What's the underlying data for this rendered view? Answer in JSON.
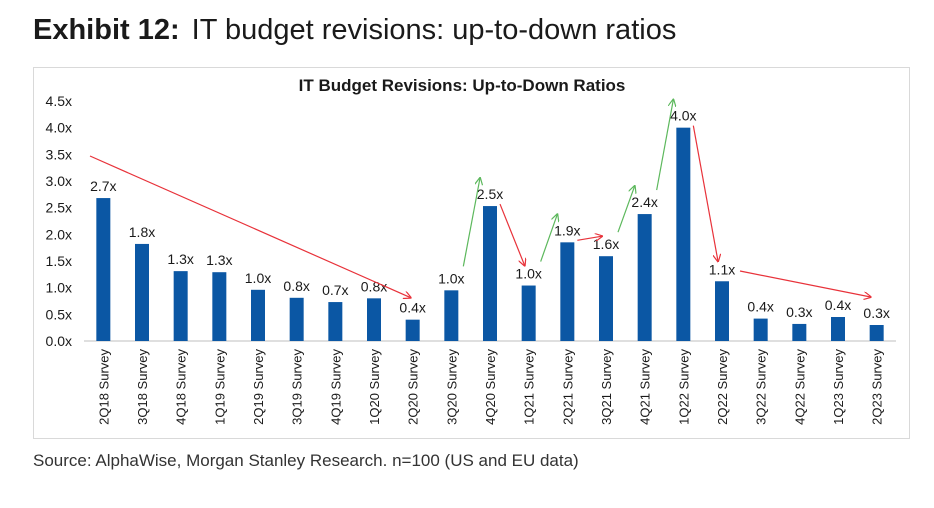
{
  "exhibit": {
    "number": "Exhibit 12:",
    "title": "IT budget revisions: up-to-down ratios"
  },
  "source": "Source: AlphaWise, Morgan Stanley Research. n=100 (US and EU data)",
  "colors": {
    "bar": "#0b57a4",
    "up_arrow": "#5cb85c",
    "down_arrow": "#e8323a",
    "text": "#1a1a1a"
  },
  "chart_data": {
    "type": "bar",
    "title": "IT Budget Revisions: Up-to-Down Ratios",
    "xlabel": "",
    "ylabel": "",
    "ylim": [
      0,
      4.5
    ],
    "yticks": [
      0,
      0.5,
      1.0,
      1.5,
      2.0,
      2.5,
      3.0,
      3.5,
      4.0,
      4.5
    ],
    "ytick_labels": [
      "0.0x",
      "0.5x",
      "1.0x",
      "1.5x",
      "2.0x",
      "2.5x",
      "3.0x",
      "3.5x",
      "4.0x",
      "4.5x"
    ],
    "categories": [
      "2Q18 Survey",
      "3Q18 Survey",
      "4Q18 Survey",
      "1Q19 Survey",
      "2Q19 Survey",
      "3Q19 Survey",
      "4Q19 Survey",
      "1Q20 Survey",
      "2Q20 Survey",
      "3Q20 Survey",
      "4Q20 Survey",
      "1Q21 Survey",
      "2Q21 Survey",
      "3Q21 Survey",
      "4Q21 Survey",
      "1Q22 Survey",
      "2Q22 Survey",
      "3Q22 Survey",
      "4Q22 Survey",
      "1Q23 Survey",
      "2Q23 Survey"
    ],
    "values": [
      2.68,
      1.82,
      1.31,
      1.29,
      0.96,
      0.81,
      0.73,
      0.8,
      0.4,
      0.95,
      2.53,
      1.04,
      1.85,
      1.59,
      2.38,
      4.0,
      1.12,
      0.42,
      0.32,
      0.45,
      0.3
    ],
    "data_labels": [
      "2.7x",
      "1.8x",
      "1.3x",
      "1.3x",
      "1.0x",
      "0.8x",
      "0.7x",
      "0.8x",
      "0.4x",
      "1.0x",
      "2.5x",
      "1.0x",
      "1.9x",
      "1.6x",
      "2.4x",
      "4.0x",
      "1.1x",
      "0.4x",
      "0.3x",
      "0.4x",
      "0.3x"
    ],
    "grid": false,
    "legend": "none",
    "trend_arrows": [
      {
        "from": 0,
        "to": 8,
        "direction": "down"
      },
      {
        "from": 9,
        "to": 10,
        "direction": "up"
      },
      {
        "from": 10,
        "to": 11,
        "direction": "down"
      },
      {
        "from": 11,
        "to": 12,
        "direction": "up"
      },
      {
        "from": 12,
        "to": 13,
        "direction": "down"
      },
      {
        "from": 13,
        "to": 14,
        "direction": "up"
      },
      {
        "from": 14,
        "to": 15,
        "direction": "up"
      },
      {
        "from": 15,
        "to": 16,
        "direction": "down"
      },
      {
        "from": 16,
        "to": 20,
        "direction": "down"
      }
    ]
  }
}
